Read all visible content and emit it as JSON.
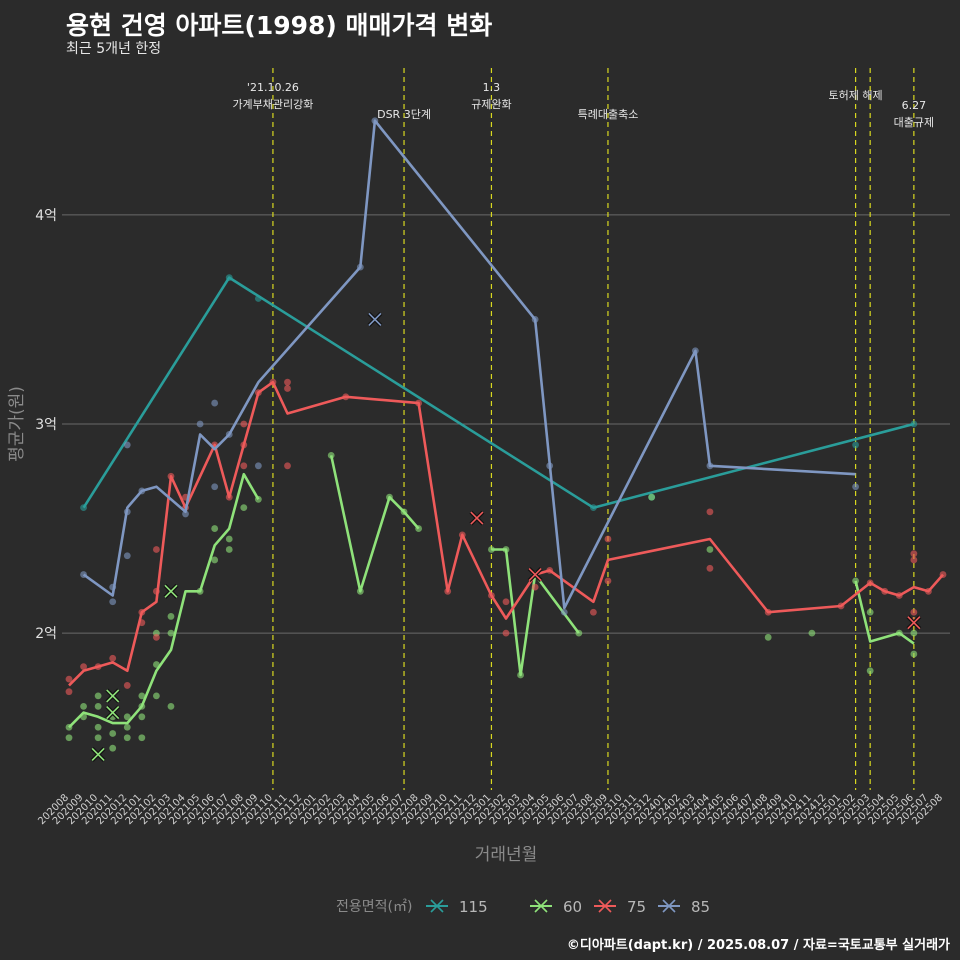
{
  "header": {
    "title": "용현 건영 아파트(1998) 매매가격 변화",
    "subtitle": "최근 5개년 한정"
  },
  "footer": {
    "caption": "©디아파트(dapt.kr) / 2025.08.07 / 자료=국토교통부 실거래가"
  },
  "colors": {
    "background": "#2b2b2b",
    "grid": "#6a6a6a",
    "event_line": "#d8d820",
    "series_115": "#2a9d9a",
    "series_60": "#8fe27a",
    "series_75": "#ee5a5a",
    "series_85": "#7f97c2"
  },
  "chart_data": {
    "type": "line",
    "xlabel": "거래년월",
    "ylabel": "평균가(원)",
    "y_unit": "억",
    "ylim": [
      1.25,
      4.75
    ],
    "yticks": [
      2,
      3,
      4
    ],
    "ytick_labels": [
      "2억",
      "3억",
      "4억"
    ],
    "grid": "horizontal",
    "x_categories": [
      "202008",
      "202009",
      "202010",
      "202011",
      "202012",
      "202101",
      "202102",
      "202103",
      "202104",
      "202105",
      "202106",
      "202107",
      "202108",
      "202109",
      "202110",
      "202111",
      "202112",
      "202201",
      "202202",
      "202203",
      "202204",
      "202205",
      "202206",
      "202207",
      "202208",
      "202209",
      "202210",
      "202211",
      "202212",
      "202301",
      "202302",
      "202303",
      "202304",
      "202305",
      "202306",
      "202307",
      "202308",
      "202309",
      "202310",
      "202311",
      "202312",
      "202401",
      "202402",
      "202403",
      "202404",
      "202405",
      "202406",
      "202407",
      "202408",
      "202409",
      "202410",
      "202411",
      "202412",
      "202501",
      "202502",
      "202503",
      "202504",
      "202505",
      "202506",
      "202507",
      "202508"
    ],
    "legend": {
      "title": "전용면적(㎡)",
      "position": "bottom",
      "entries": [
        "115",
        "60",
        "75",
        "85"
      ]
    },
    "events": [
      {
        "x": "202110",
        "label": "'21.10.26\n가계부채관리강화"
      },
      {
        "x": "202207",
        "label": "DSR 3단계"
      },
      {
        "x": "202301",
        "label": "1.3\n규제완화"
      },
      {
        "x": "202309",
        "label": "특례대출축소"
      },
      {
        "x": "202502",
        "label": "토허제 해제"
      },
      {
        "x": "202503",
        "label": ""
      },
      {
        "x": "202506",
        "label": "6.27\n대출규제"
      }
    ],
    "series": [
      {
        "name": "115",
        "line": [
          [
            "202009",
            2.6
          ],
          [
            "202107",
            3.7
          ],
          [
            "202308",
            2.6
          ],
          [
            "202506",
            3.0
          ]
        ],
        "points": [
          [
            "202009",
            2.6
          ],
          [
            "202107",
            3.7
          ],
          [
            "202109",
            3.6
          ],
          [
            "202308",
            2.6
          ],
          [
            "202312",
            2.65
          ],
          [
            "202502",
            2.9
          ],
          [
            "202506",
            3.0
          ]
        ],
        "cancelled": []
      },
      {
        "name": "60",
        "line": [
          [
            "202008",
            1.55
          ],
          [
            "202009",
            1.62
          ],
          [
            "202010",
            1.6
          ],
          [
            "202011",
            1.57
          ],
          [
            "202012",
            1.57
          ],
          [
            "202101",
            1.65
          ],
          [
            "202102",
            1.82
          ],
          [
            "202103",
            1.92
          ],
          [
            "202104",
            2.2
          ],
          [
            "202105",
            2.2
          ],
          [
            "202106",
            2.42
          ],
          [
            "202107",
            2.5
          ],
          [
            "202108",
            2.76
          ],
          [
            "202109",
            2.64
          ],
          null,
          [
            "202202",
            2.85
          ],
          [
            "202204",
            2.2
          ],
          [
            "202206",
            2.65
          ],
          [
            "202207",
            2.58
          ],
          [
            "202208",
            2.5
          ],
          null,
          [
            "202301",
            2.4
          ],
          [
            "202302",
            2.4
          ],
          [
            "202303",
            1.8
          ],
          [
            "202304",
            2.28
          ],
          [
            "202307",
            2.0
          ],
          null,
          [
            "202502",
            2.25
          ],
          [
            "202503",
            1.96
          ],
          [
            "202505",
            2.0
          ],
          [
            "202506",
            1.95
          ]
        ],
        "points": [
          [
            "202008",
            1.5
          ],
          [
            "202008",
            1.55
          ],
          [
            "202009",
            1.6
          ],
          [
            "202009",
            1.65
          ],
          [
            "202010",
            1.55
          ],
          [
            "202010",
            1.5
          ],
          [
            "202010",
            1.65
          ],
          [
            "202010",
            1.7
          ],
          [
            "202011",
            1.45
          ],
          [
            "202011",
            1.52
          ],
          [
            "202011",
            1.6
          ],
          [
            "202012",
            1.5
          ],
          [
            "202012",
            1.55
          ],
          [
            "202012",
            1.6
          ],
          [
            "202101",
            1.5
          ],
          [
            "202101",
            1.6
          ],
          [
            "202101",
            1.65
          ],
          [
            "202101",
            1.7
          ],
          [
            "202102",
            1.7
          ],
          [
            "202102",
            1.85
          ],
          [
            "202102",
            2.0
          ],
          [
            "202103",
            1.65
          ],
          [
            "202103",
            2.0
          ],
          [
            "202103",
            2.08
          ],
          [
            "202105",
            2.2
          ],
          [
            "202106",
            2.35
          ],
          [
            "202106",
            2.5
          ],
          [
            "202107",
            2.4
          ],
          [
            "202107",
            2.45
          ],
          [
            "202108",
            2.6
          ],
          [
            "202109",
            2.64
          ],
          [
            "202202",
            2.85
          ],
          [
            "202204",
            2.2
          ],
          [
            "202206",
            2.65
          ],
          [
            "202207",
            2.58
          ],
          [
            "202208",
            2.5
          ],
          [
            "202301",
            2.4
          ],
          [
            "202302",
            2.4
          ],
          [
            "202303",
            1.8
          ],
          [
            "202304",
            2.28
          ],
          [
            "202307",
            2.0
          ],
          [
            "202312",
            2.65
          ],
          [
            "202404",
            2.4
          ],
          [
            "202408",
            1.98
          ],
          [
            "202411",
            2.0
          ],
          [
            "202502",
            2.25
          ],
          [
            "202503",
            1.82
          ],
          [
            "202503",
            2.1
          ],
          [
            "202505",
            2.0
          ],
          [
            "202506",
            1.9
          ],
          [
            "202506",
            2.0
          ]
        ],
        "cancelled": [
          [
            "202010",
            1.42
          ],
          [
            "202011",
            1.7
          ],
          [
            "202103",
            2.2
          ],
          [
            "202011",
            1.62
          ]
        ]
      },
      {
        "name": "75",
        "line": [
          [
            "202008",
            1.75
          ],
          [
            "202009",
            1.82
          ],
          [
            "202010",
            1.84
          ],
          [
            "202011",
            1.86
          ],
          [
            "202012",
            1.82
          ],
          [
            "202101",
            2.1
          ],
          [
            "202102",
            2.15
          ],
          [
            "202103",
            2.75
          ],
          [
            "202104",
            2.6
          ],
          [
            "202106",
            2.9
          ],
          [
            "202107",
            2.65
          ],
          [
            "202108",
            2.9
          ],
          [
            "202109",
            3.15
          ],
          [
            "202110",
            3.2
          ],
          [
            "202111",
            3.05
          ],
          [
            "202203",
            3.13
          ],
          [
            "202208",
            3.1
          ],
          [
            "202210",
            2.2
          ],
          [
            "202211",
            2.47
          ],
          [
            "202301",
            2.18
          ],
          [
            "202302",
            2.07
          ],
          [
            "202304",
            2.28
          ],
          [
            "202305",
            2.3
          ],
          [
            "202308",
            2.15
          ],
          [
            "202309",
            2.35
          ],
          [
            "202404",
            2.45
          ],
          [
            "202408",
            2.1
          ],
          [
            "202501",
            2.13
          ],
          [
            "202503",
            2.24
          ],
          [
            "202504",
            2.2
          ],
          [
            "202505",
            2.18
          ],
          [
            "202506",
            2.22
          ],
          [
            "202507",
            2.2
          ],
          [
            "202508",
            2.28
          ]
        ],
        "points": [
          [
            "202008",
            1.72
          ],
          [
            "202008",
            1.78
          ],
          [
            "202009",
            1.84
          ],
          [
            "202010",
            1.84
          ],
          [
            "202011",
            1.88
          ],
          [
            "202012",
            1.75
          ],
          [
            "202101",
            2.05
          ],
          [
            "202101",
            2.1
          ],
          [
            "202102",
            2.2
          ],
          [
            "202102",
            2.4
          ],
          [
            "202102",
            1.98
          ],
          [
            "202103",
            2.75
          ],
          [
            "202104",
            2.6
          ],
          [
            "202104",
            2.65
          ],
          [
            "202106",
            2.9
          ],
          [
            "202107",
            2.65
          ],
          [
            "202108",
            2.8
          ],
          [
            "202108",
            2.9
          ],
          [
            "202108",
            3.0
          ],
          [
            "202109",
            3.15
          ],
          [
            "202110",
            3.2
          ],
          [
            "202111",
            2.8
          ],
          [
            "202111",
            3.17
          ],
          [
            "202111",
            3.2
          ],
          [
            "202203",
            3.13
          ],
          [
            "202208",
            3.1
          ],
          [
            "202210",
            2.2
          ],
          [
            "202211",
            2.47
          ],
          [
            "202301",
            2.18
          ],
          [
            "202302",
            2.0
          ],
          [
            "202302",
            2.15
          ],
          [
            "202304",
            2.22
          ],
          [
            "202305",
            2.3
          ],
          [
            "202308",
            2.1
          ],
          [
            "202309",
            2.25
          ],
          [
            "202309",
            2.45
          ],
          [
            "202404",
            2.31
          ],
          [
            "202404",
            2.58
          ],
          [
            "202408",
            2.1
          ],
          [
            "202501",
            2.13
          ],
          [
            "202503",
            2.24
          ],
          [
            "202504",
            2.2
          ],
          [
            "202505",
            2.18
          ],
          [
            "202506",
            2.06
          ],
          [
            "202506",
            2.1
          ],
          [
            "202506",
            2.35
          ],
          [
            "202506",
            2.38
          ],
          [
            "202507",
            2.2
          ],
          [
            "202508",
            2.28
          ]
        ],
        "cancelled": [
          [
            "202212",
            2.55
          ],
          [
            "202304",
            2.28
          ],
          [
            "202506",
            2.05
          ]
        ]
      },
      {
        "name": "85",
        "line": [
          [
            "202009",
            2.28
          ],
          [
            "202011",
            2.18
          ],
          [
            "202012",
            2.6
          ],
          [
            "202101",
            2.68
          ],
          [
            "202102",
            2.7
          ],
          [
            "202104",
            2.58
          ],
          [
            "202105",
            2.95
          ],
          [
            "202106",
            2.88
          ],
          [
            "202107",
            2.95
          ],
          [
            "202109",
            3.2
          ],
          [
            "202204",
            3.75
          ],
          [
            "202205",
            4.45
          ],
          [
            "202304",
            3.5
          ],
          [
            "202306",
            2.12
          ],
          [
            "202403",
            3.35
          ],
          [
            "202404",
            2.8
          ],
          [
            "202502",
            2.76
          ]
        ],
        "points": [
          [
            "202009",
            2.28
          ],
          [
            "202011",
            2.15
          ],
          [
            "202011",
            2.22
          ],
          [
            "202012",
            2.37
          ],
          [
            "202012",
            2.58
          ],
          [
            "202012",
            2.9
          ],
          [
            "202101",
            2.68
          ],
          [
            "202104",
            2.57
          ],
          [
            "202105",
            3.0
          ],
          [
            "202106",
            2.7
          ],
          [
            "202106",
            3.1
          ],
          [
            "202107",
            2.95
          ],
          [
            "202109",
            2.8
          ],
          [
            "202204",
            3.75
          ],
          [
            "202205",
            4.45
          ],
          [
            "202304",
            3.5
          ],
          [
            "202305",
            2.8
          ],
          [
            "202306",
            2.1
          ],
          [
            "202403",
            3.35
          ],
          [
            "202404",
            2.8
          ],
          [
            "202502",
            2.7
          ]
        ],
        "cancelled": [
          [
            "202205",
            3.5
          ]
        ]
      }
    ]
  }
}
